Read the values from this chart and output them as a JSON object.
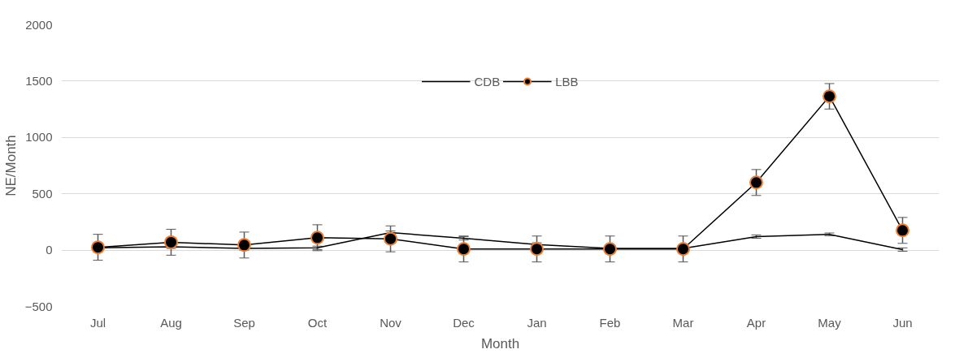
{
  "chart_data": {
    "type": "line",
    "xlabel": "Month",
    "ylabel": "NE/Month",
    "categories": [
      "Jul",
      "Aug",
      "Sep",
      "Oct",
      "Nov",
      "Dec",
      "Jan",
      "Feb",
      "Mar",
      "Apr",
      "May",
      "Jun"
    ],
    "series": [
      {
        "name": "CDB",
        "color": "#000000",
        "marker": "none",
        "values": [
          20,
          30,
          15,
          20,
          155,
          105,
          50,
          15,
          15,
          120,
          140,
          5
        ],
        "errors": [
          15,
          15,
          15,
          15,
          15,
          15,
          15,
          15,
          15,
          15,
          12,
          15
        ]
      },
      {
        "name": "LBB",
        "color": "#000000",
        "marker": "circle",
        "values": [
          25,
          70,
          45,
          110,
          100,
          10,
          10,
          10,
          10,
          600,
          1365,
          175
        ],
        "errors": [
          115,
          115,
          115,
          115,
          115,
          115,
          115,
          115,
          115,
          115,
          113,
          115
        ]
      }
    ],
    "ylim": [
      -500,
      2000
    ],
    "yticks": [
      -500,
      0,
      500,
      1000,
      1500,
      2000
    ],
    "grid": "y",
    "legend": "top"
  }
}
